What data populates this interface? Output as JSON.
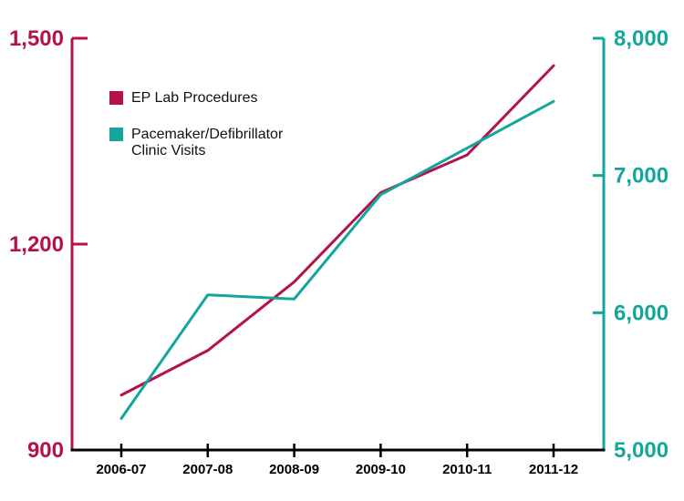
{
  "chart_data": {
    "type": "line",
    "title": "",
    "categories": [
      "2006-07",
      "2007-08",
      "2008-09",
      "2009-10",
      "2010-11",
      "2011-12"
    ],
    "series": [
      {
        "name": "EP Lab Procedures",
        "axis": "left",
        "color": "#b51249",
        "values": [
          980,
          1045,
          1145,
          1275,
          1330,
          1460
        ]
      },
      {
        "name": "Pacemaker/Defibrillator\nClinic Visits",
        "axis": "right",
        "color": "#14a69c",
        "values": [
          5230,
          6130,
          6100,
          6860,
          7200,
          7540
        ]
      }
    ],
    "left_axis": {
      "min": 900,
      "max": 1500,
      "tick_values": [
        1500,
        1200,
        900
      ],
      "tick_labels": [
        "1,500",
        "1,200",
        "900"
      ],
      "color": "#b51249"
    },
    "right_axis": {
      "min": 5000,
      "max": 8000,
      "tick_values": [
        8000,
        7000,
        6000,
        5000
      ],
      "tick_labels": [
        "8,000",
        "7,000",
        "6,000",
        "5,000"
      ],
      "color": "#14a69c"
    },
    "x_axis": {
      "color": "#000000"
    },
    "grid": false,
    "legend_position": "top-left-inside"
  }
}
